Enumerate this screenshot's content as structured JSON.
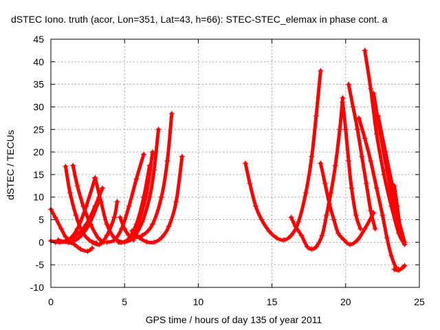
{
  "chart_data": {
    "type": "scatter",
    "title": "dSTEC Iono. truth (acor, Lon=351, Lat=43, h=66): STEC-STEC_elemax in phase cont. a",
    "xlabel": "GPS time / hours of day 135 of year 2011",
    "ylabel": "dSTEC  / TECUs",
    "xlim": [
      0,
      25
    ],
    "ylim": [
      -10,
      45
    ],
    "xticks": [
      0,
      5,
      10,
      15,
      20,
      25
    ],
    "yticks": [
      -10,
      -5,
      0,
      5,
      10,
      15,
      20,
      25,
      30,
      35,
      40,
      45
    ],
    "grid": true,
    "marker": "+",
    "color": "#ff0000",
    "series": [
      {
        "x": [
          0.0,
          0.3,
          0.7,
          1.0,
          1.3
        ],
        "y": [
          7.3,
          5.5,
          3.0,
          1.2,
          0.2
        ]
      },
      {
        "x": [
          0.0,
          0.6,
          1.2,
          1.8,
          2.4,
          3.0
        ],
        "y": [
          0.3,
          0.0,
          0.5,
          3.0,
          8.0,
          14.2
        ]
      },
      {
        "x": [
          1.0,
          1.3,
          1.7,
          2.1,
          2.6,
          3.1
        ],
        "y": [
          16.8,
          11.0,
          6.0,
          2.5,
          0.5,
          -0.2
        ]
      },
      {
        "x": [
          1.5,
          1.8,
          2.2,
          2.7,
          3.2,
          3.6
        ],
        "y": [
          17.0,
          12.5,
          8.0,
          4.0,
          1.0,
          0.0
        ]
      },
      {
        "x": [
          0.3,
          1.0,
          1.7,
          2.4,
          3.0,
          3.5
        ],
        "y": [
          0.0,
          0.3,
          1.5,
          4.0,
          8.0,
          12.0
        ]
      },
      {
        "x": [
          0.5,
          1.2,
          1.9,
          2.6,
          3.3
        ],
        "y": [
          0.5,
          0.0,
          1.0,
          4.0,
          9.5
        ]
      },
      {
        "x": [
          1.2,
          1.6,
          2.0,
          2.5,
          2.8
        ],
        "y": [
          0.0,
          -0.5,
          -1.5,
          -2.0,
          -1.3
        ]
      },
      {
        "x": [
          3.0,
          3.4,
          3.8,
          4.3,
          4.8
        ],
        "y": [
          14.3,
          9.0,
          4.0,
          1.0,
          0.0
        ]
      },
      {
        "x": [
          2.8,
          3.3,
          3.8,
          4.3,
          4.5
        ],
        "y": [
          0.0,
          -0.5,
          1.5,
          5.5,
          9.0
        ]
      },
      {
        "x": [
          3.8,
          4.3,
          4.8,
          5.3,
          5.8,
          6.3
        ],
        "y": [
          0.0,
          0.5,
          3.0,
          8.0,
          14.0,
          19.5
        ]
      },
      {
        "x": [
          4.7,
          5.0,
          5.3,
          5.6
        ],
        "y": [
          5.5,
          3.0,
          1.5,
          0.5
        ]
      },
      {
        "x": [
          4.6,
          5.2,
          5.8,
          6.3,
          6.7
        ],
        "y": [
          0.0,
          0.5,
          4.0,
          10.0,
          17.0
        ]
      },
      {
        "x": [
          4.7,
          5.3,
          5.9,
          6.5,
          6.9
        ],
        "y": [
          0.0,
          0.5,
          4.0,
          11.0,
          20.0
        ]
      },
      {
        "x": [
          5.0,
          5.6,
          6.2,
          6.7,
          7.0,
          7.3
        ],
        "y": [
          0.0,
          1.0,
          4.5,
          10.0,
          16.0,
          25.0
        ]
      },
      {
        "x": [
          5.5,
          6.2,
          6.9,
          7.5,
          7.9,
          8.2
        ],
        "y": [
          1.0,
          1.5,
          4.0,
          10.0,
          18.0,
          28.5
        ]
      },
      {
        "x": [
          5.5,
          6.0,
          6.5,
          7.0,
          7.5,
          8.0,
          8.5,
          8.9
        ],
        "y": [
          2.5,
          1.0,
          0.1,
          0.0,
          1.0,
          3.5,
          9.0,
          19.0
        ]
      },
      {
        "x": [
          13.2,
          13.5,
          13.9,
          14.3,
          14.8,
          15.3,
          15.8,
          16.3,
          16.8,
          17.3,
          17.7,
          18.0,
          18.3
        ],
        "y": [
          17.5,
          13.0,
          8.0,
          5.0,
          2.5,
          1.0,
          0.5,
          1.5,
          4.5,
          11.0,
          19.0,
          28.0,
          38.0
        ]
      },
      {
        "x": [
          16.3,
          16.6,
          17.0,
          17.4,
          17.7,
          18.0,
          18.4,
          18.7,
          19.0,
          19.3,
          19.6,
          19.8
        ],
        "y": [
          5.5,
          3.5,
          1.5,
          -1.0,
          -1.5,
          -1.0,
          1.5,
          6.0,
          11.0,
          17.0,
          25.0,
          32.0
        ]
      },
      {
        "x": [
          18.3,
          18.6,
          18.9,
          19.2,
          19.5,
          19.9,
          20.3,
          20.8,
          21.3,
          21.9
        ],
        "y": [
          17.5,
          13.0,
          8.5,
          5.0,
          2.0,
          0.5,
          -0.5,
          0.5,
          3.0,
          6.5
        ]
      },
      {
        "x": [
          19.8,
          20.0,
          20.2,
          20.4,
          20.7,
          21.0
        ],
        "y": [
          31.0,
          25.0,
          18.0,
          12.0,
          6.0,
          3.0
        ]
      },
      {
        "x": [
          20.2,
          20.5,
          20.8,
          21.1,
          21.4,
          21.7,
          22.0
        ],
        "y": [
          35.0,
          30.0,
          25.0,
          19.0,
          13.0,
          7.0,
          3.0
        ]
      },
      {
        "x": [
          20.9,
          21.3,
          21.7,
          22.1,
          22.5,
          22.8,
          23.1,
          23.4,
          23.6
        ],
        "y": [
          27.5,
          23.0,
          18.0,
          12.0,
          6.0,
          1.0,
          -3.0,
          -5.5,
          -6.0
        ]
      },
      {
        "x": [
          21.3,
          21.7,
          22.1,
          22.6,
          23.1,
          23.6,
          24.0
        ],
        "y": [
          42.5,
          34.0,
          24.0,
          15.0,
          8.0,
          2.0,
          -0.5
        ]
      },
      {
        "x": [
          21.9,
          22.3,
          22.8,
          23.3,
          23.8,
          24.0
        ],
        "y": [
          33.0,
          25.0,
          16.0,
          8.0,
          2.0,
          0.0
        ]
      },
      {
        "x": [
          22.2,
          22.7,
          23.2,
          23.6,
          24.0
        ],
        "y": [
          28.0,
          20.0,
          12.0,
          5.0,
          0.0
        ]
      },
      {
        "x": [
          23.3,
          23.5,
          23.7,
          23.9
        ],
        "y": [
          12.5,
          8.0,
          3.0,
          0.5
        ]
      },
      {
        "x": [
          23.3,
          23.6,
          23.9,
          24.0
        ],
        "y": [
          -6.0,
          -6.2,
          -5.5,
          -5.2
        ]
      }
    ]
  }
}
